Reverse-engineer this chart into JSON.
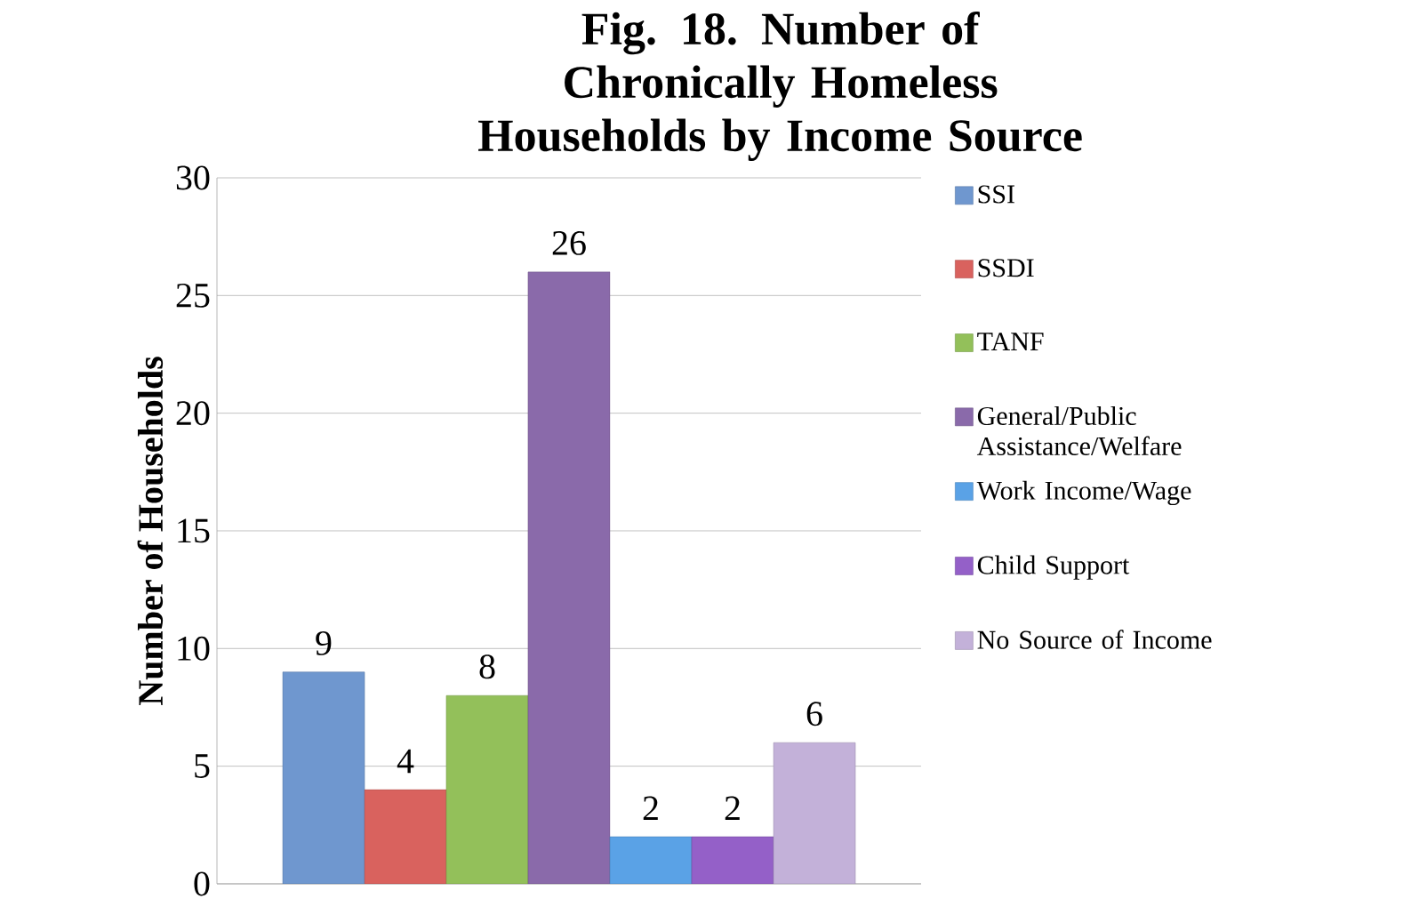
{
  "chart_data": {
    "type": "bar",
    "title": "Fig. 18. Number of Chronically Homeless Households by Income Source",
    "ylabel": "Number of Households",
    "categories": [
      null
    ],
    "series": [
      {
        "name": "SSI",
        "color": "#6f97cf",
        "values": [
          9
        ]
      },
      {
        "name": "SSDI",
        "color": "#d9625e",
        "values": [
          4
        ]
      },
      {
        "name": "TANF",
        "color": "#93c05a",
        "values": [
          8
        ]
      },
      {
        "name": "General/Public Assistance/Welfare",
        "color": "#8a6aaa",
        "values": [
          26
        ]
      },
      {
        "name": "Work Income/Wage",
        "color": "#5aa2e6",
        "values": [
          2
        ]
      },
      {
        "name": "Child Support",
        "color": "#9460c8",
        "values": [
          2
        ]
      },
      {
        "name": "No Source of Income",
        "color": "#c3b1d9",
        "values": [
          6
        ]
      }
    ],
    "ylim": [
      0,
      30
    ],
    "yticks": [
      0,
      5,
      10,
      15,
      20,
      25,
      30
    ],
    "grid": "y",
    "legend": "right",
    "data_labels": true
  }
}
